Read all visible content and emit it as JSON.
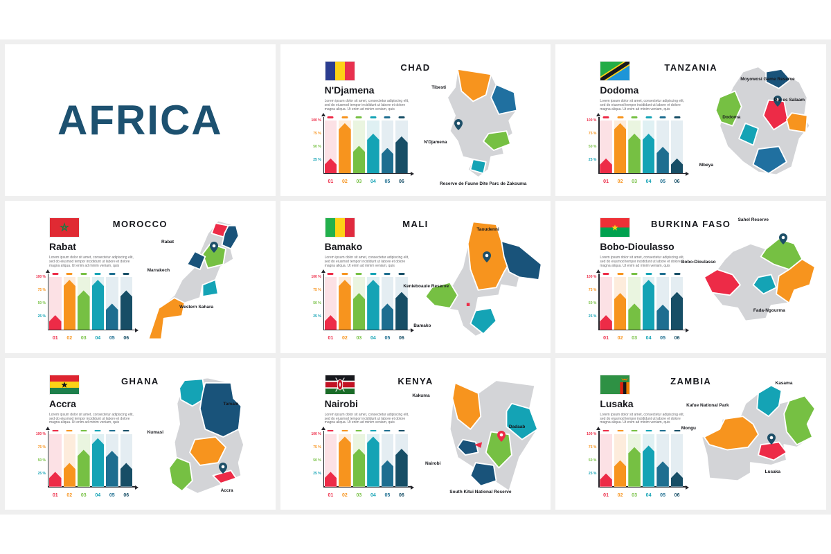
{
  "page": {
    "title": "AFRICA"
  },
  "palette": {
    "orange": "#f7941e",
    "green": "#76c043",
    "teal": "#14a3b5",
    "blue": "#2070a0",
    "navy": "#19537a",
    "red": "#ed2b47",
    "map_gray": "#d3d4d7",
    "pin_navy": "#1d4f68",
    "africa_title": "#1d5170",
    "text_dark": "#17181d"
  },
  "chart_style": {
    "bar_colors": [
      "#ed2b47",
      "#f7941e",
      "#76c043",
      "#14a3b5",
      "#1e6e90",
      "#174e66"
    ],
    "bar_tints": [
      "#fce1e5",
      "#fdecdc",
      "#eaf5e0",
      "#dff0f3",
      "#e4edf2",
      "#e4edf2"
    ],
    "y_tick_colors": [
      "#ed2b47",
      "#f7941e",
      "#76c043",
      "#14a3b5"
    ]
  },
  "chart_data": [
    {
      "type": "bar",
      "country": "CHAD",
      "categories": [
        "01",
        "02",
        "03",
        "04",
        "05",
        "06"
      ],
      "values": [
        28,
        95,
        52,
        75,
        48,
        70
      ],
      "ylim": [
        0,
        100
      ],
      "y_tick_labels": [
        "100 %",
        "75 %",
        "50 %",
        "25 %"
      ],
      "grid": false
    },
    {
      "type": "bar",
      "country": "TANZANIA",
      "categories": [
        "01",
        "02",
        "03",
        "04",
        "05",
        "06"
      ],
      "values": [
        28,
        95,
        75,
        75,
        50,
        28
      ],
      "ylim": [
        0,
        100
      ],
      "y_tick_labels": [
        "100 %",
        "75 %",
        "50 %",
        "25 %"
      ],
      "grid": false
    },
    {
      "type": "bar",
      "country": "MOROCCO",
      "categories": [
        "01",
        "02",
        "03",
        "04",
        "05",
        "06"
      ],
      "values": [
        28,
        95,
        75,
        95,
        50,
        75
      ],
      "ylim": [
        0,
        100
      ],
      "y_tick_labels": [
        "100 %",
        "75 %",
        "50 %",
        "25 %"
      ],
      "grid": false
    },
    {
      "type": "bar",
      "country": "MALI",
      "categories": [
        "01",
        "02",
        "03",
        "04",
        "05",
        "06"
      ],
      "values": [
        28,
        95,
        70,
        95,
        50,
        72
      ],
      "ylim": [
        0,
        100
      ],
      "y_tick_labels": [
        "100 %",
        "75 %",
        "50 %",
        "25 %"
      ],
      "grid": false
    },
    {
      "type": "bar",
      "country": "BURKINA FASO",
      "categories": [
        "01",
        "02",
        "03",
        "04",
        "05",
        "06"
      ],
      "values": [
        28,
        70,
        50,
        95,
        48,
        72
      ],
      "ylim": [
        0,
        100
      ],
      "y_tick_labels": [
        "100 %",
        "75 %",
        "50 %",
        "25 %"
      ],
      "grid": false
    },
    {
      "type": "bar",
      "country": "GHANA",
      "categories": [
        "01",
        "02",
        "03",
        "04",
        "05",
        "06"
      ],
      "values": [
        28,
        45,
        70,
        92,
        68,
        45
      ],
      "ylim": [
        0,
        100
      ],
      "y_tick_labels": [
        "100 %",
        "75 %",
        "50 %",
        "25 %"
      ],
      "grid": false
    },
    {
      "type": "bar",
      "country": "KENYA",
      "categories": [
        "01",
        "02",
        "03",
        "04",
        "05",
        "06"
      ],
      "values": [
        28,
        95,
        72,
        95,
        50,
        72
      ],
      "ylim": [
        0,
        100
      ],
      "y_tick_labels": [
        "100 %",
        "75 %",
        "50 %",
        "25 %"
      ],
      "grid": false
    },
    {
      "type": "bar",
      "country": "ZAMBIA",
      "categories": [
        "01",
        "02",
        "03",
        "04",
        "05",
        "06"
      ],
      "values": [
        25,
        50,
        75,
        78,
        48,
        28
      ],
      "ylim": [
        0,
        100
      ],
      "y_tick_labels": [
        "100 %",
        "75 %",
        "50 %",
        "25 %"
      ],
      "grid": false
    }
  ],
  "panels": [
    {
      "country": "CHAD",
      "capital": "N'Djamena",
      "description": "Lorem ipsum dolor sit amet, consectetur adipiscing elit, sed do eiusmod tempor incididunt ut labore et dolore magna aliqua. Ut enim ad minim veniam, quis",
      "map_labels": [
        "Tibesti",
        "N'Djamena",
        "Reserve de Faune Dite Parc de Zakouma"
      ]
    },
    {
      "country": "TANZANIA",
      "capital": "Dodoma",
      "description": "Lorem ipsum dolor sit amet, consectetur adipiscing elit, sed do eiusmod tempor incididunt ut labore et dolore magna aliqua. Ut enim ad minim veniam, quis",
      "map_labels": [
        "Moyowosi Game Reserve",
        "Dar es Salaam",
        "Dodoma",
        "Mbeya"
      ]
    },
    {
      "country": "MOROCCO",
      "capital": "Rabat",
      "description": "Lorem ipsum dolor sit amet, consectetur adipiscing elit, sed do eiusmod tempor incididunt ut labore et dolore magna aliqua. Ut enim ad minim veniam, quis",
      "map_labels": [
        "Rabat",
        "Marrakech",
        "Western Sahara"
      ]
    },
    {
      "country": "MALI",
      "capital": "Bamako",
      "description": "Lorem ipsum dolor sit amet, consectetur adipiscing elit, sed do eiusmod tempor incididunt ut labore et dolore magna aliqua. Ut enim ad minim veniam, quis",
      "map_labels": [
        "Taoudenni",
        "Kenieboaule Reserve",
        "Bamako"
      ]
    },
    {
      "country": "BURKINA FASO",
      "capital": "Bobo-Dioulasso",
      "description": "Lorem ipsum dolor sit amet, consectetur adipiscing elit, sed do eiusmod tempor incididunt ut labore et dolore magna aliqua. Ut enim ad minim veniam, quis",
      "map_labels": [
        "Sahel Reserve",
        "Bobo-Dioulasso",
        "Fada-Ngourma"
      ]
    },
    {
      "country": "GHANA",
      "capital": "Accra",
      "description": "Lorem ipsum dolor sit amet, consectetur adipiscing elit, sed do eiusmod tempor incididunt ut labore et dolore magna aliqua. Ut enim ad minim veniam, quis",
      "map_labels": [
        "Tamale",
        "Kumasi",
        "Accra"
      ]
    },
    {
      "country": "KENYA",
      "capital": "Nairobi",
      "description": "Lorem ipsum dolor sit amet, consectetur adipiscing elit, sed do eiusmod tempor incididunt ut labore et dolore magna aliqua. Ut enim ad minim veniam, quis",
      "map_labels": [
        "Kakuma",
        "Dadaab",
        "Nairobi",
        "South Kitui National Reserve"
      ]
    },
    {
      "country": "ZAMBIA",
      "capital": "Lusaka",
      "description": "Lorem ipsum dolor sit amet, consectetur adipiscing elit, sed do eiusmod tempor incididunt ut labore et dolore magna aliqua. Ut enim ad minim veniam, quis",
      "map_labels": [
        "Kasama",
        "Kafue National Park",
        "Mongu",
        "Lusaka"
      ]
    }
  ]
}
